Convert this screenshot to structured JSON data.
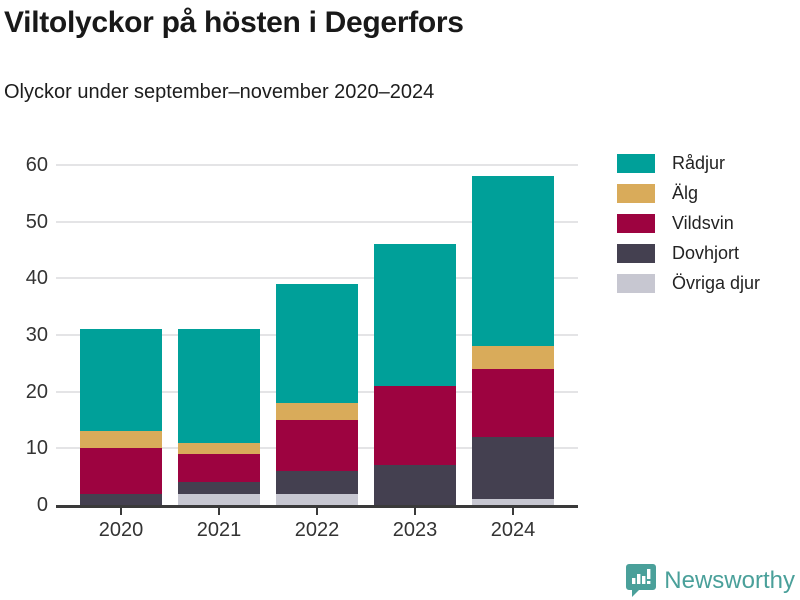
{
  "header": {
    "title": "Viltolyckor på hösten i Degerfors",
    "subtitle": "Olyckor under september–november 2020–2024"
  },
  "chart_data": {
    "type": "bar",
    "stacked": true,
    "title": "Viltolyckor på hösten i Degerfors",
    "subtitle": "Olyckor under september–november 2020–2024",
    "categories": [
      "2020",
      "2021",
      "2022",
      "2023",
      "2024"
    ],
    "series": [
      {
        "name": "Rådjur",
        "color": "#00a099",
        "values": [
          18,
          20,
          21,
          25,
          30
        ]
      },
      {
        "name": "Älg",
        "color": "#d9ab5a",
        "values": [
          3,
          2,
          3,
          0,
          4
        ]
      },
      {
        "name": "Vildsvin",
        "color": "#9d0340",
        "values": [
          8,
          5,
          9,
          14,
          12
        ]
      },
      {
        "name": "Dovhjort",
        "color": "#444050",
        "values": [
          2,
          2,
          4,
          7,
          11
        ]
      },
      {
        "name": "Övriga djur",
        "color": "#c7c7d1",
        "values": [
          0,
          2,
          2,
          0,
          1
        ]
      }
    ],
    "totals": [
      31,
      31,
      39,
      46,
      58
    ],
    "xlabel": "",
    "ylabel": "",
    "ylim": [
      0,
      60
    ],
    "yticks": [
      0,
      10,
      20,
      30,
      40,
      50,
      60
    ],
    "grid": "horizontal",
    "grid_color": "#e4e4e6",
    "axis_color": "#3a3a3a",
    "tick_label_color": "#333333",
    "legend_position": "right"
  },
  "footer": {
    "brand": "Newsworthy",
    "brand_color": "#4aa09a",
    "logo_icon": "bar-chart-speech-bubble-icon"
  }
}
